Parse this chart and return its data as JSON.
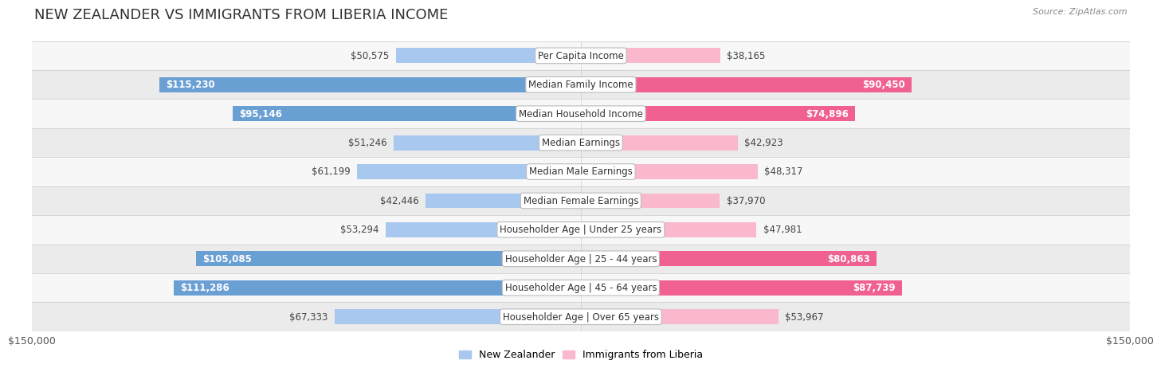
{
  "title": "NEW ZEALANDER VS IMMIGRANTS FROM LIBERIA INCOME",
  "source": "Source: ZipAtlas.com",
  "categories": [
    "Per Capita Income",
    "Median Family Income",
    "Median Household Income",
    "Median Earnings",
    "Median Male Earnings",
    "Median Female Earnings",
    "Householder Age | Under 25 years",
    "Householder Age | 25 - 44 years",
    "Householder Age | 45 - 64 years",
    "Householder Age | Over 65 years"
  ],
  "nz_values": [
    50575,
    115230,
    95146,
    51246,
    61199,
    42446,
    53294,
    105085,
    111286,
    67333
  ],
  "lib_values": [
    38165,
    90450,
    74896,
    42923,
    48317,
    37970,
    47981,
    80863,
    87739,
    53967
  ],
  "nz_color_light": "#A8C8F0",
  "nz_color_dark": "#6A9FD4",
  "lib_color_light": "#F9B8CC",
  "lib_color_dark": "#F06090",
  "max_value": 150000,
  "bar_height": 0.52,
  "row_colors": [
    "#f7f7f7",
    "#ebebeb"
  ],
  "row_border_color": "#d0d0d0",
  "legend_nz_label": "New Zealander",
  "legend_lib_label": "Immigrants from Liberia",
  "title_fontsize": 13,
  "label_fontsize": 8.5,
  "value_fontsize": 8.5,
  "source_fontsize": 8,
  "axis_tick_label": "$150,000",
  "nz_inside_threshold": 0.45,
  "lib_inside_threshold": 0.45
}
